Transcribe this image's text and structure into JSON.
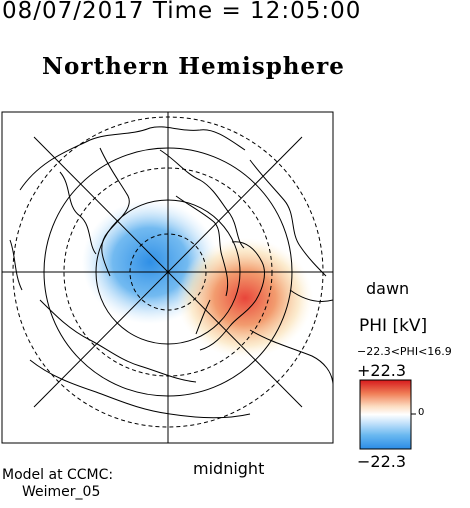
{
  "header": {
    "timestamp": "08/07/2017 Time = 12:05:00",
    "title": "Northern Hemisphere"
  },
  "plot": {
    "orientation_labels": {
      "dawn": "dawn",
      "midnight": "midnight"
    },
    "projection": "polar",
    "rotation_note": "noon at top, midnight at bottom, dawn at right",
    "potential_cells": [
      {
        "sign": "negative",
        "color": "#3a9be8",
        "location": "dusk side (left of pole)"
      },
      {
        "sign": "positive",
        "color": "#e8453a",
        "location": "dawn side (lower right of pole)"
      }
    ]
  },
  "colorbar": {
    "label": "PHI [kV]",
    "range_text": "−22.3<PHI<16.9",
    "max_label": "+22.3",
    "min_label": "−22.3",
    "zero_label": "0",
    "colors": {
      "top": "#d7191c",
      "mid": "#ffffff",
      "bottom": "#2b8ce6"
    }
  },
  "footer": {
    "model_label": "Model at CCMC:",
    "model_name": "Weimer_05"
  }
}
